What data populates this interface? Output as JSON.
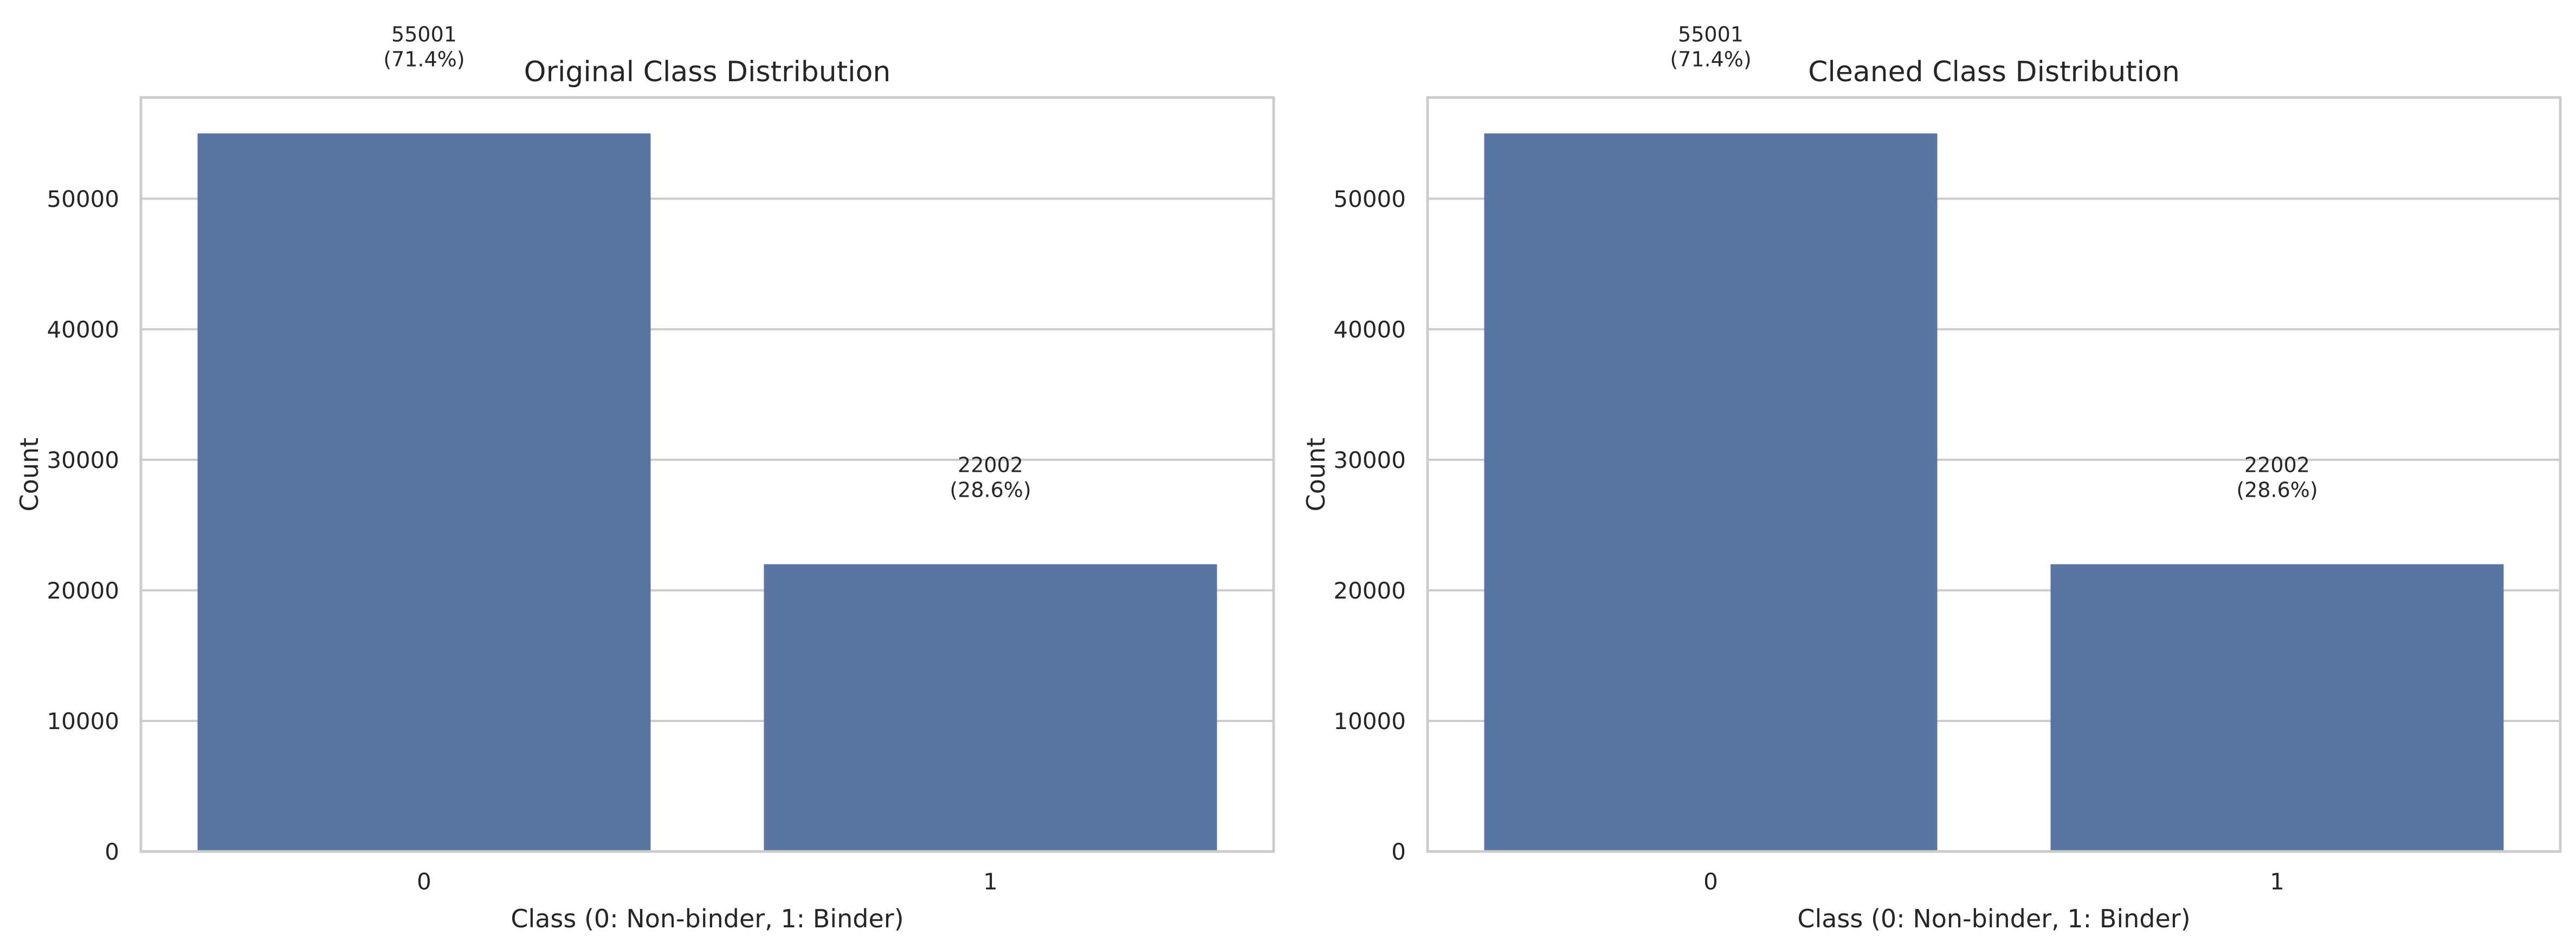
{
  "style": {
    "bar_color": "#5975a4",
    "grid_color": "#cccccc",
    "spine_color": "#cccccc",
    "text_color": "#262626",
    "background": "#ffffff"
  },
  "chart_data": [
    {
      "type": "bar",
      "title": "Original Class Distribution",
      "xlabel": "Class (0: Non-binder, 1: Binder)",
      "ylabel": "Count",
      "categories": [
        "0",
        "1"
      ],
      "values": [
        55001,
        22002
      ],
      "bar_labels": [
        [
          "55001",
          "(71.4%)"
        ],
        [
          "22002",
          "(28.6%)"
        ]
      ],
      "ylim": [
        0,
        57750
      ],
      "yticks": [
        0,
        10000,
        20000,
        30000,
        40000,
        50000
      ],
      "ytick_labels": [
        "0",
        "10000",
        "20000",
        "30000",
        "40000",
        "50000"
      ],
      "grid": "horizontal"
    },
    {
      "type": "bar",
      "title": "Cleaned Class Distribution",
      "xlabel": "Class (0: Non-binder, 1: Binder)",
      "ylabel": "Count",
      "categories": [
        "0",
        "1"
      ],
      "values": [
        55001,
        22002
      ],
      "bar_labels": [
        [
          "55001",
          "(71.4%)"
        ],
        [
          "22002",
          "(28.6%)"
        ]
      ],
      "ylim": [
        0,
        57750
      ],
      "yticks": [
        0,
        10000,
        20000,
        30000,
        40000,
        50000
      ],
      "ytick_labels": [
        "0",
        "10000",
        "20000",
        "30000",
        "40000",
        "50000"
      ],
      "grid": "horizontal"
    }
  ]
}
